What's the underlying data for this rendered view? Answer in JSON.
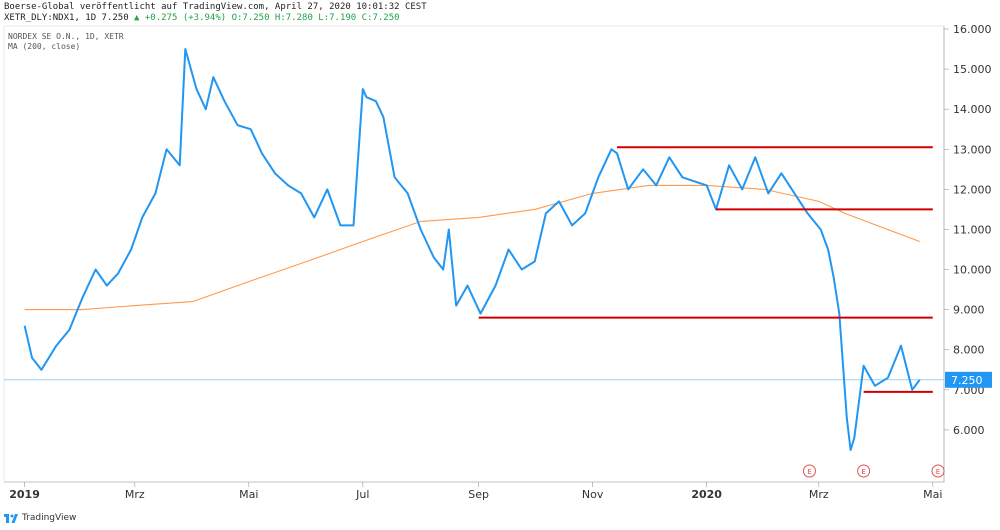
{
  "header": {
    "published": "Boerse-Global veröffentlicht auf TradingView.com, April 27, 2020 10:01:32 CEST",
    "symbol_prefix": "XETR_DLY:NDX1, 1D 7.250",
    "symbol_values": "▲ +0.275 (+3.94%) O:7.250 H:7.280 L:7.190 C:7.250"
  },
  "legend": {
    "series_name": "NORDEX SE O.N., 1D, XETR",
    "ma_name": "MA (200, close)"
  },
  "footer": {
    "brand": "TradingView"
  },
  "colors": {
    "price_line": "#2196f3",
    "ma_line": "#ff9a4d",
    "resistance": "#d10000",
    "last_price_bg": "#2196f3",
    "earnings_marker": "#e05050"
  },
  "chart_data": {
    "type": "line",
    "title": "NORDEX SE O.N., 1D, XETR",
    "ylim": [
      5.0,
      16.0
    ],
    "yticks": [
      "6.000",
      "7.000",
      "8.000",
      "9.000",
      "10.000",
      "11.000",
      "12.000",
      "13.000",
      "14.000",
      "15.000",
      "16.000"
    ],
    "xticks": [
      "2019",
      "Mrz",
      "Mai",
      "Jul",
      "Sep",
      "Nov",
      "2020",
      "Mrz",
      "Mai"
    ],
    "xticks_bold": [
      "2019",
      "2020"
    ],
    "last_price_label": "7.250",
    "last_price": 7.25,
    "series": [
      {
        "name": "NORDEX SE O.N., 1D, XETR",
        "x": [
          "2019-01-01",
          "2019-01-05",
          "2019-01-10",
          "2019-01-18",
          "2019-01-25",
          "2019-02-01",
          "2019-02-08",
          "2019-02-14",
          "2019-02-20",
          "2019-02-27",
          "2019-03-05",
          "2019-03-12",
          "2019-03-18",
          "2019-03-25",
          "2019-03-28",
          "2019-04-03",
          "2019-04-08",
          "2019-04-12",
          "2019-04-18",
          "2019-04-25",
          "2019-05-02",
          "2019-05-08",
          "2019-05-15",
          "2019-05-22",
          "2019-05-29",
          "2019-06-05",
          "2019-06-12",
          "2019-06-19",
          "2019-06-26",
          "2019-07-01",
          "2019-07-03",
          "2019-07-08",
          "2019-07-12",
          "2019-07-18",
          "2019-07-25",
          "2019-08-01",
          "2019-08-08",
          "2019-08-13",
          "2019-08-16",
          "2019-08-20",
          "2019-08-26",
          "2019-09-02",
          "2019-09-10",
          "2019-09-17",
          "2019-09-24",
          "2019-10-01",
          "2019-10-07",
          "2019-10-14",
          "2019-10-21",
          "2019-10-28",
          "2019-11-04",
          "2019-11-11",
          "2019-11-14",
          "2019-11-20",
          "2019-11-28",
          "2019-12-05",
          "2019-12-12",
          "2019-12-19",
          "2020-01-01",
          "2020-01-06",
          "2020-01-13",
          "2020-01-20",
          "2020-01-27",
          "2020-02-03",
          "2020-02-10",
          "2020-02-17",
          "2020-02-24",
          "2020-03-02",
          "2020-03-06",
          "2020-03-09",
          "2020-03-12",
          "2020-03-16",
          "2020-03-18",
          "2020-03-20",
          "2020-03-25",
          "2020-03-31",
          "2020-04-07",
          "2020-04-14",
          "2020-04-20",
          "2020-04-24"
        ],
        "y": [
          8.6,
          7.8,
          7.5,
          8.1,
          8.5,
          9.3,
          10.0,
          9.6,
          9.9,
          10.5,
          11.3,
          11.9,
          13.0,
          12.6,
          15.5,
          14.5,
          14.0,
          14.8,
          14.2,
          13.6,
          13.5,
          12.9,
          12.4,
          12.1,
          11.9,
          11.3,
          12.0,
          11.1,
          11.1,
          14.5,
          14.3,
          14.2,
          13.8,
          12.3,
          11.9,
          11.0,
          10.3,
          10.0,
          11.0,
          9.1,
          9.6,
          8.9,
          9.6,
          10.5,
          10.0,
          10.2,
          11.4,
          11.7,
          11.1,
          11.4,
          12.3,
          13.0,
          12.9,
          12.0,
          12.5,
          12.1,
          12.8,
          12.3,
          12.1,
          11.5,
          12.6,
          12.0,
          12.8,
          11.9,
          12.4,
          11.9,
          11.4,
          11.0,
          10.5,
          9.8,
          8.9,
          6.3,
          5.5,
          5.8,
          7.6,
          7.1,
          7.3,
          8.1,
          7.0,
          7.25
        ]
      },
      {
        "name": "MA (200, close)",
        "x": [
          "2019-01-01",
          "2019-02-01",
          "2019-03-01",
          "2019-04-01",
          "2019-05-01",
          "2019-06-01",
          "2019-07-01",
          "2019-08-01",
          "2019-09-01",
          "2019-10-01",
          "2019-11-01",
          "2019-12-01",
          "2020-01-01",
          "2020-02-01",
          "2020-03-01",
          "2020-03-15",
          "2020-04-01",
          "2020-04-24"
        ],
        "y": [
          9.0,
          9.0,
          9.1,
          9.2,
          9.7,
          10.2,
          10.7,
          11.2,
          11.3,
          11.5,
          11.9,
          12.1,
          12.1,
          12.0,
          11.7,
          11.4,
          11.1,
          10.7
        ]
      }
    ],
    "resistance_lines": [
      {
        "from": "2019-11-14",
        "to": "2020-05-01",
        "y": 13.05
      },
      {
        "from": "2020-01-06",
        "to": "2020-05-01",
        "y": 11.5
      },
      {
        "from": "2019-09-01",
        "to": "2020-05-01",
        "y": 8.8
      },
      {
        "from": "2020-03-25",
        "to": "2020-05-01",
        "y": 6.95
      }
    ],
    "earnings_markers": [
      {
        "x": "2020-02-25",
        "label": "E"
      },
      {
        "x": "2020-03-25",
        "label": "E"
      },
      {
        "x": "2020-05-04",
        "label": "E"
      }
    ],
    "grid": false,
    "legend_position": "top-left"
  }
}
